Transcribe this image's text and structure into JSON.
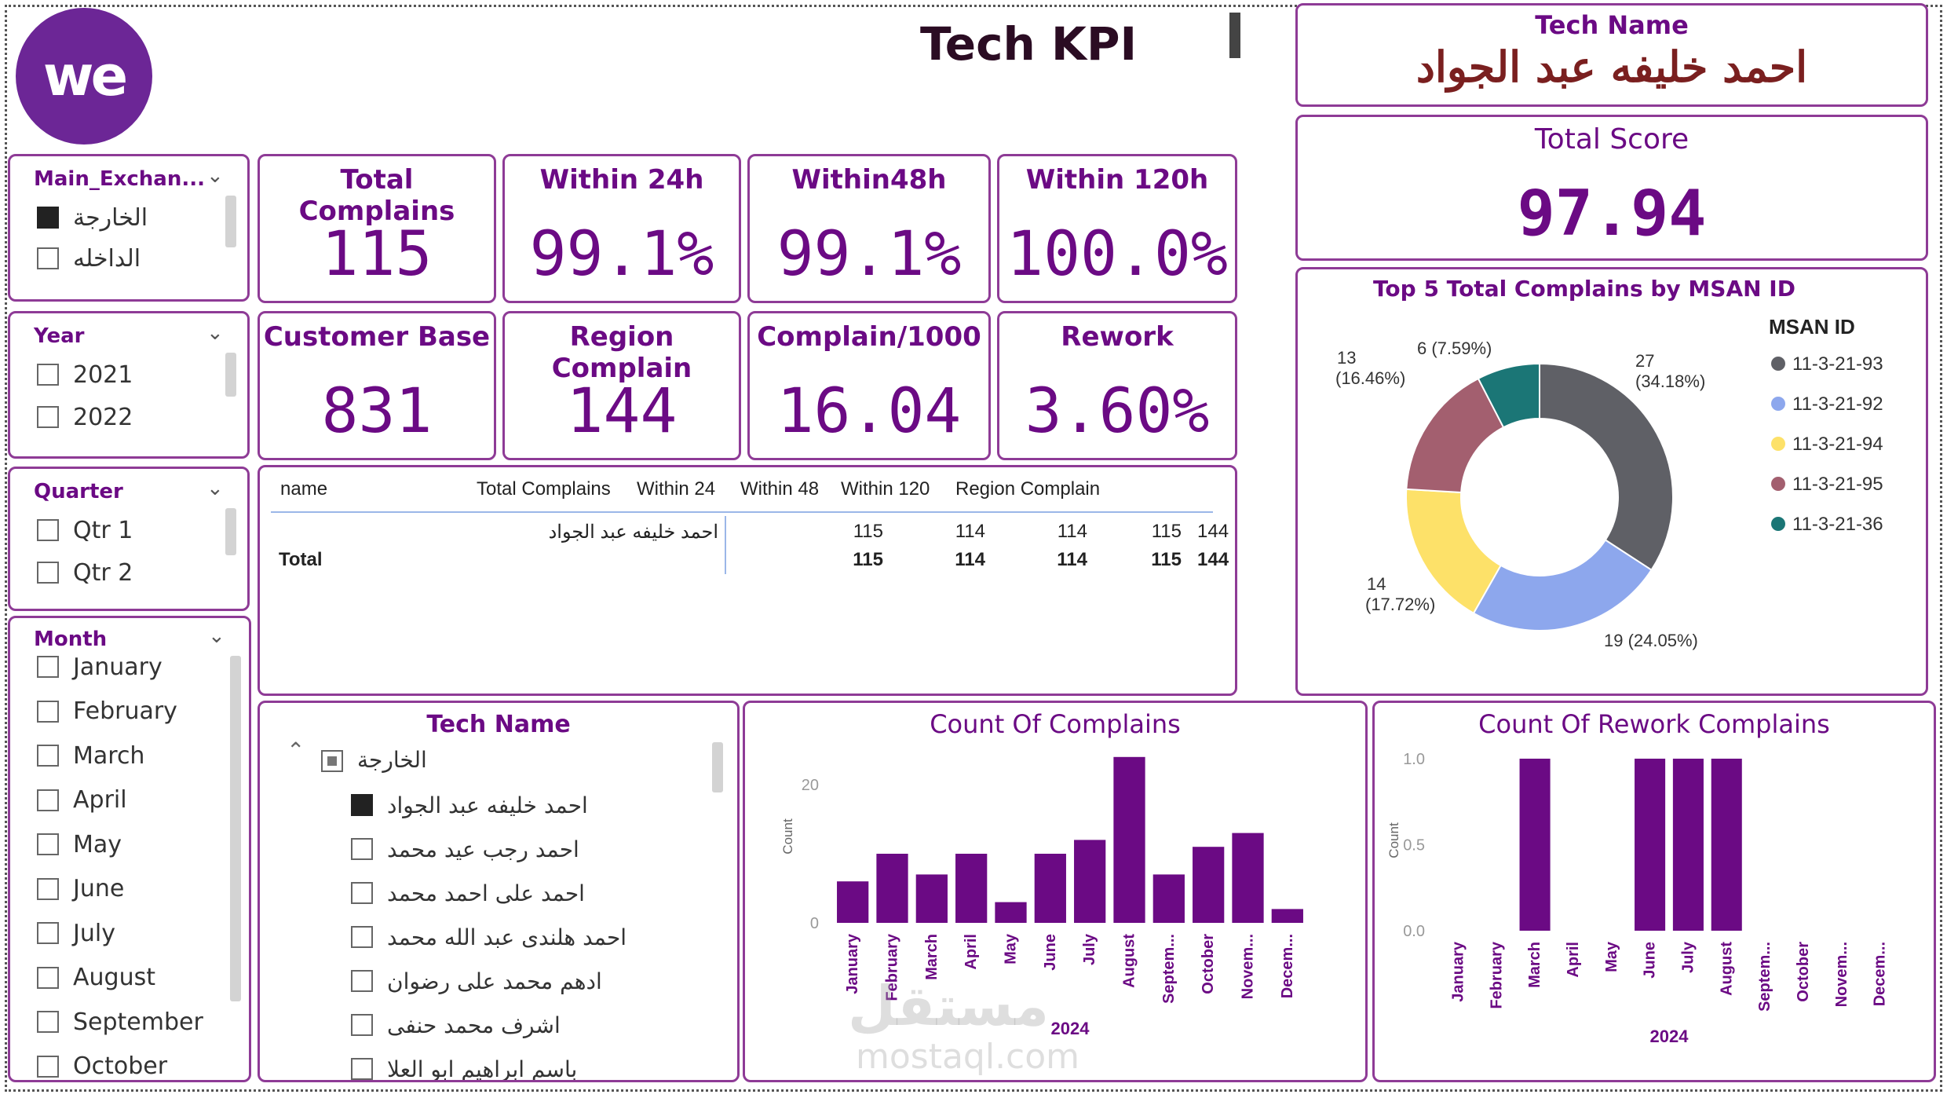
{
  "logo_text": "we",
  "title": "Tech KPI",
  "tech_name_card": {
    "label": "Tech Name",
    "value": "احمد خليفه عبد الجواد"
  },
  "total_score_card": {
    "label": "Total Score",
    "value": "97.94"
  },
  "slicers": {
    "main_exchange": {
      "title": "Main_Exchan...",
      "options": [
        {
          "label": "الخارجة",
          "checked": true
        },
        {
          "label": "الداخله",
          "checked": false
        }
      ]
    },
    "year": {
      "title": "Year",
      "options": [
        {
          "label": "2021",
          "checked": false
        },
        {
          "label": "2022",
          "checked": false
        }
      ]
    },
    "quarter": {
      "title": "Quarter",
      "options": [
        {
          "label": "Qtr 1",
          "checked": false
        },
        {
          "label": "Qtr 2",
          "checked": false
        }
      ]
    },
    "month": {
      "title": "Month",
      "options": [
        {
          "label": "January"
        },
        {
          "label": "February"
        },
        {
          "label": "March"
        },
        {
          "label": "April"
        },
        {
          "label": "May"
        },
        {
          "label": "June"
        },
        {
          "label": "July"
        },
        {
          "label": "August"
        },
        {
          "label": "September"
        },
        {
          "label": "October"
        }
      ]
    }
  },
  "kpis": [
    {
      "label": "Total Complains",
      "value": "115"
    },
    {
      "label": "Within 24h",
      "value": "99.1%"
    },
    {
      "label": "Within48h",
      "value": "99.1%"
    },
    {
      "label": "Within 120h",
      "value": "100.0%"
    },
    {
      "label": "Customer Base",
      "value": "831"
    },
    {
      "label": "Region Complain",
      "value": "144"
    },
    {
      "label": "Complain/1000",
      "value": "16.04"
    },
    {
      "label": "Rework",
      "value": "3.60%"
    }
  ],
  "table": {
    "headers": [
      "name",
      "Total Complains",
      "Within 24",
      "Within 48",
      "Within 120",
      "Region Complain"
    ],
    "rows": [
      [
        "احمد خليفه عبد الجواد",
        "115",
        "114",
        "114",
        "115",
        "144"
      ]
    ],
    "total": [
      "Total",
      "115",
      "114",
      "114",
      "115",
      "144"
    ]
  },
  "tech_slicer": {
    "title": "Tech Name",
    "group": "الخارجة",
    "items": [
      {
        "label": "احمد خليفه عبد الجواد",
        "checked": true
      },
      {
        "label": "احمد رجب عيد محمد",
        "checked": false
      },
      {
        "label": "احمد على احمد محمد",
        "checked": false
      },
      {
        "label": "احمد هلندى عبد الله محمد",
        "checked": false
      },
      {
        "label": "ادهم محمد على رضوان",
        "checked": false
      },
      {
        "label": "اشرف محمد حنفى",
        "checked": false
      },
      {
        "label": "باسم ابراهيم ابو العلا",
        "checked": false
      }
    ]
  },
  "watermark": {
    "line1": "مستقل",
    "line2": "mostaql.com"
  },
  "chart_data": [
    {
      "type": "pie",
      "title": "Top 5 Total Complains by MSAN ID",
      "legend_title": "MSAN ID",
      "legend_position": "right",
      "slices": [
        {
          "name": "11-3-21-93",
          "value": 27,
          "label": "27",
          "pct": "(34.18%)",
          "color": "#5f6066"
        },
        {
          "name": "11-3-21-92",
          "value": 19,
          "label": "19 (24.05%)",
          "pct": "",
          "color": "#8da7ed"
        },
        {
          "name": "11-3-21-94",
          "value": 14,
          "label": "14",
          "pct": "(17.72%)",
          "color": "#fde169"
        },
        {
          "name": "11-3-21-95",
          "value": 13,
          "label": "13",
          "pct": "(16.46%)",
          "color": "#a35f6f"
        },
        {
          "name": "11-3-21-36",
          "value": 6,
          "label": "6 (7.59%)",
          "pct": "",
          "color": "#1b7676"
        }
      ]
    },
    {
      "type": "bar",
      "title": "Count Of Complains",
      "ylabel": "Count",
      "xlabel": "2024",
      "categories": [
        "January",
        "February",
        "March",
        "April",
        "May",
        "June",
        "July",
        "August",
        "Septem...",
        "October",
        "Novem...",
        "Decem..."
      ],
      "values": [
        6,
        10,
        7,
        10,
        3,
        10,
        12,
        24,
        7,
        11,
        13,
        2
      ],
      "ylim": [
        0,
        25
      ],
      "yticks": [
        "0",
        "20"
      ],
      "color": "#6b0a84"
    },
    {
      "type": "bar",
      "title": "Count Of Rework Complains",
      "ylabel": "Count",
      "xlabel": "2024",
      "categories": [
        "January",
        "February",
        "March",
        "April",
        "May",
        "June",
        "July",
        "August",
        "Septem...",
        "October",
        "Novem...",
        "Decem..."
      ],
      "values": [
        0,
        0,
        1,
        0,
        0,
        1,
        1,
        1,
        0,
        0,
        0,
        0
      ],
      "ylim": [
        0,
        1.05
      ],
      "yticks": [
        "0.0",
        "0.5",
        "1.0"
      ],
      "color": "#6b0a84"
    }
  ]
}
